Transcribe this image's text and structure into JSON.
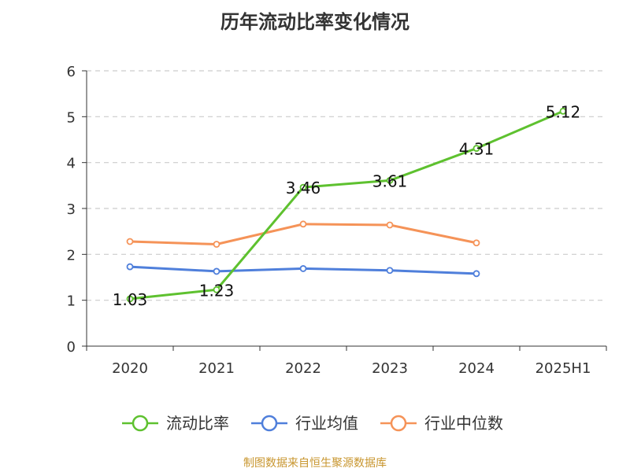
{
  "chart_data": {
    "type": "line",
    "title": "历年流动比率变化情况",
    "categories": [
      "2020",
      "2021",
      "2022",
      "2023",
      "2024",
      "2025H1"
    ],
    "series": [
      {
        "name": "流动比率",
        "color": "#5ec12f",
        "values": [
          1.03,
          1.23,
          3.46,
          3.61,
          4.31,
          5.12
        ],
        "show_labels": true
      },
      {
        "name": "行业均值",
        "color": "#4f7fdb",
        "values": [
          1.73,
          1.63,
          1.69,
          1.65,
          1.58,
          null
        ],
        "show_labels": false
      },
      {
        "name": "行业中位数",
        "color": "#f59358",
        "values": [
          2.28,
          2.22,
          2.66,
          2.64,
          2.25,
          null
        ],
        "show_labels": false
      }
    ],
    "ylim": [
      0,
      6
    ],
    "yticks": [
      0,
      1,
      2,
      3,
      4,
      5,
      6
    ],
    "grid": "horizontal-dashed",
    "legend_position": "bottom"
  },
  "source": "制图数据来自恒生聚源数据库"
}
